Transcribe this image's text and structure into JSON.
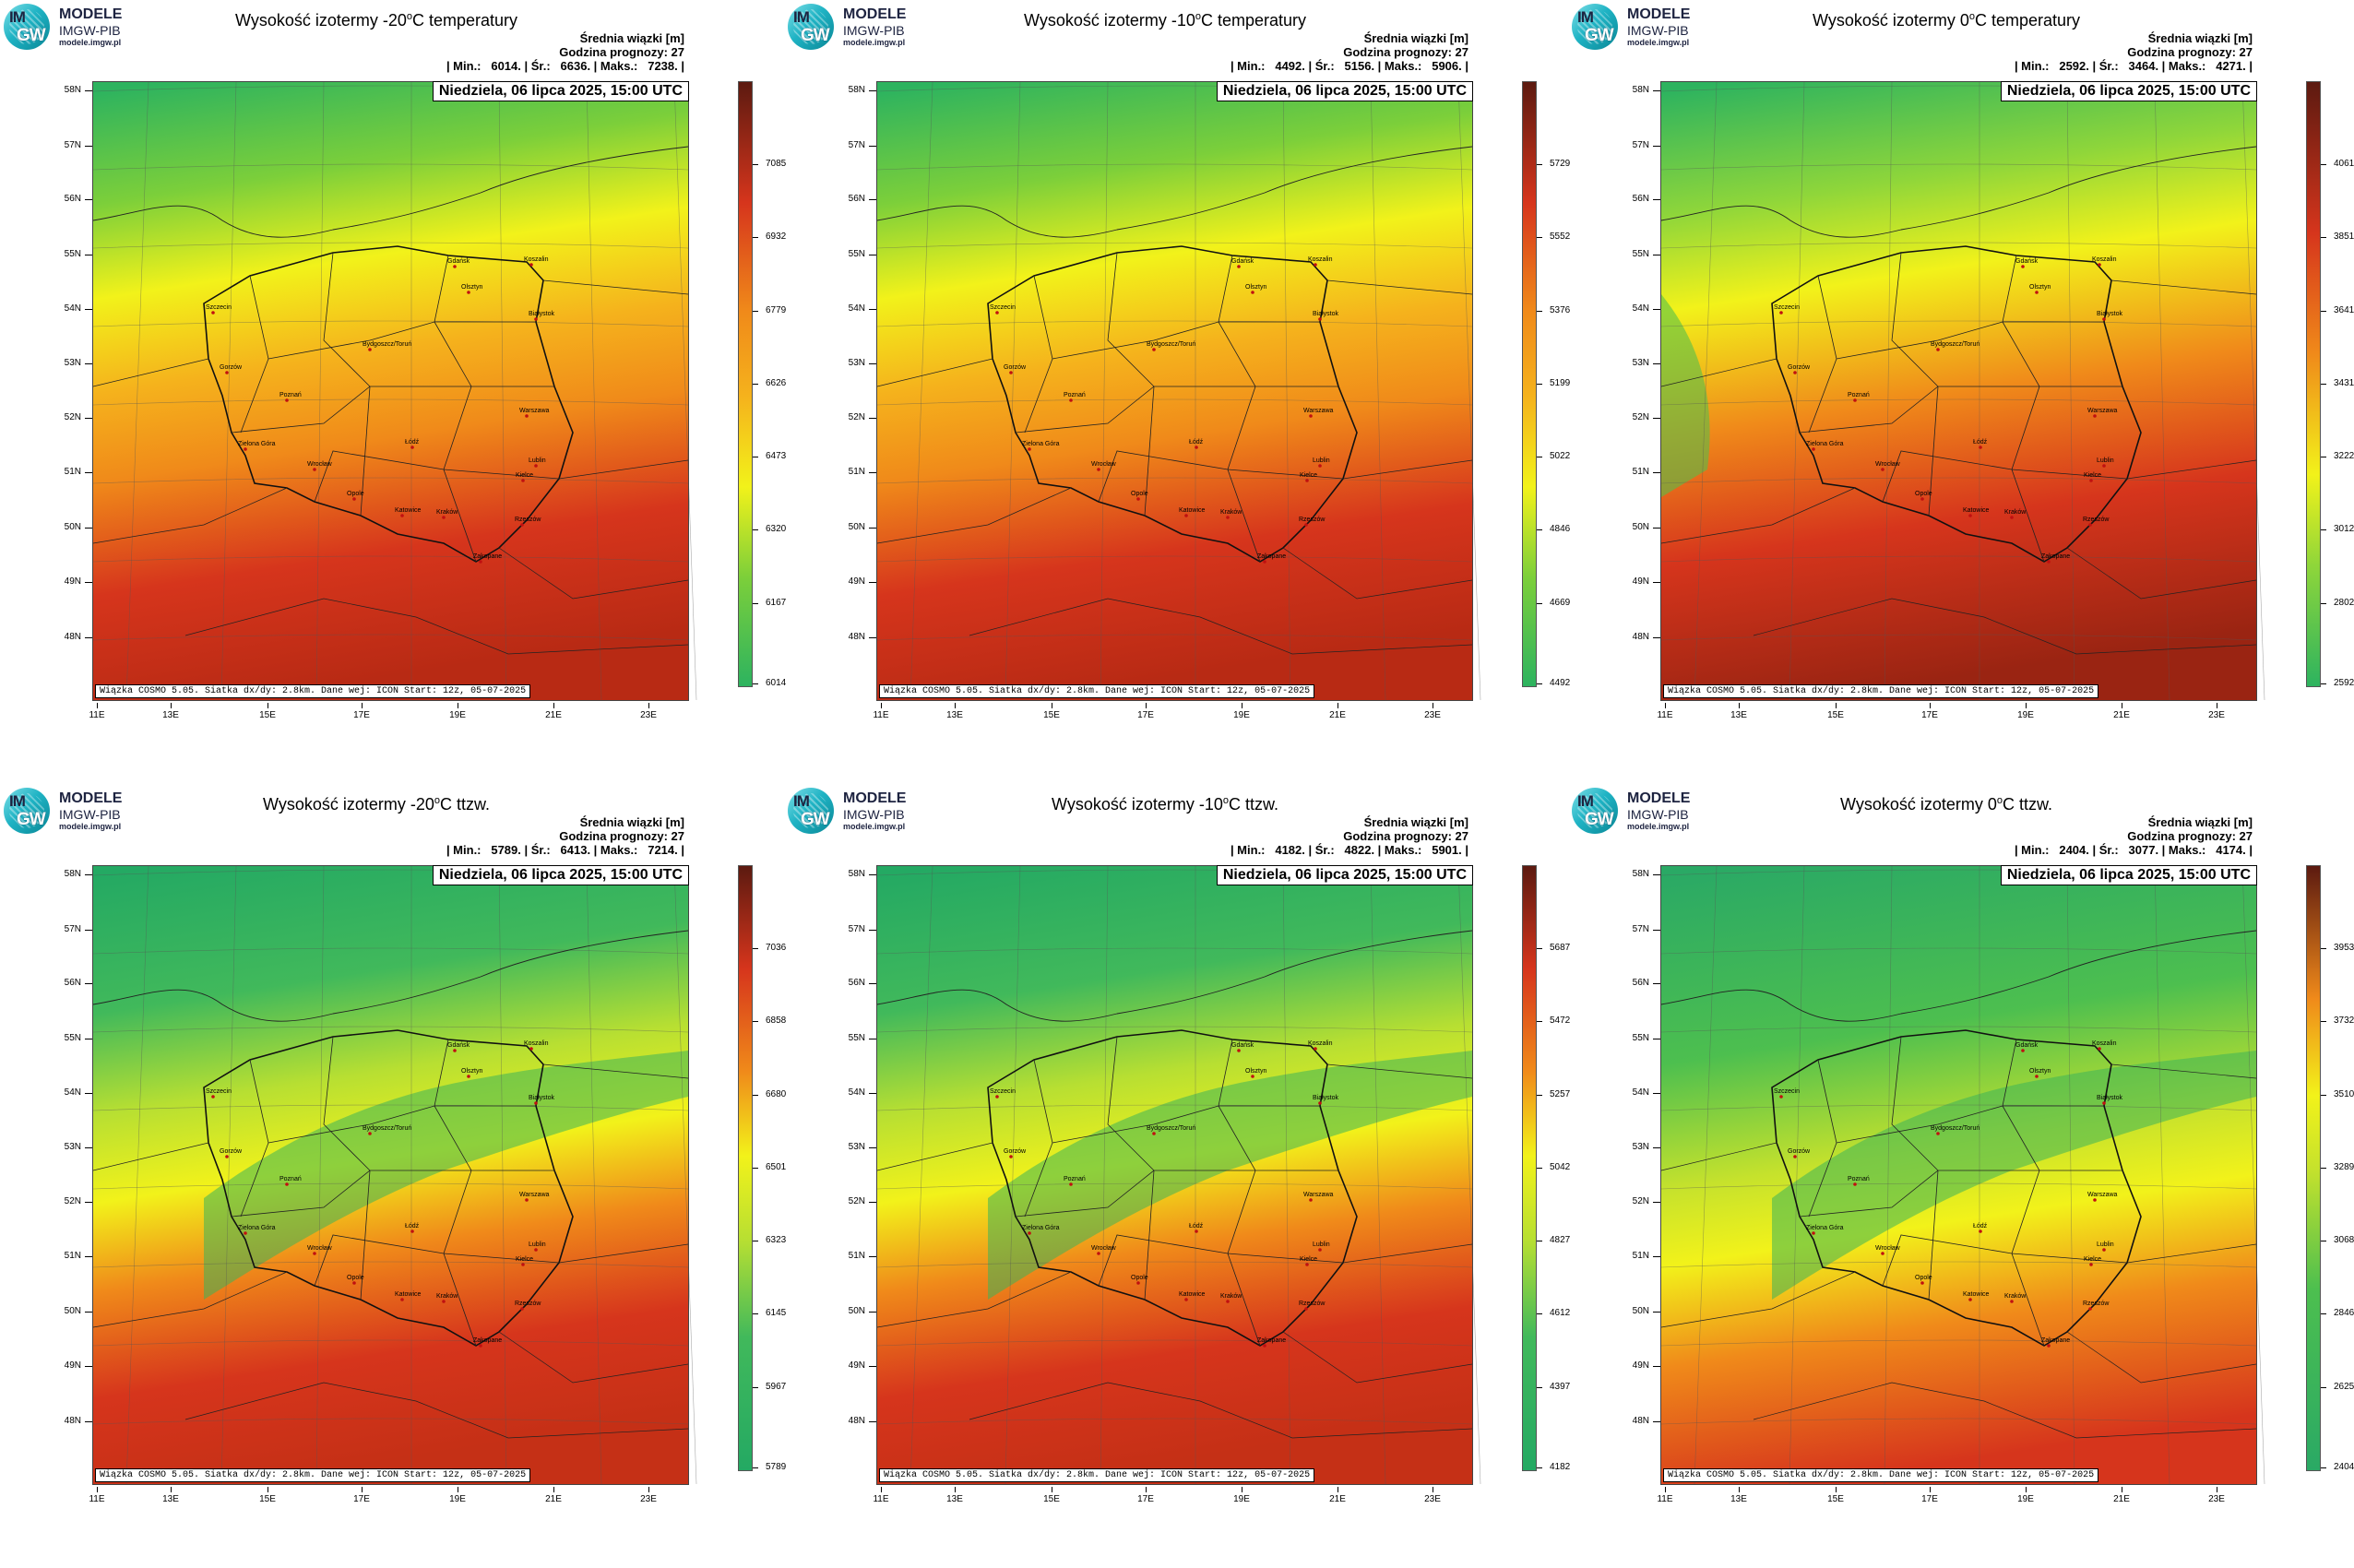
{
  "logo": {
    "im": "IM",
    "gw": "GW",
    "line1": "MODELE",
    "line2": "IMGW-PIB",
    "line3": "modele.imgw.pl"
  },
  "common": {
    "stats_title": "Średnia wiązki [m]",
    "forecast_hour": "Godzina prognozy: 27",
    "date": "Niedziela, 06 lipca 2025, 15:00 UTC",
    "info": "Wiązka COSMO 5.05. Siatka dx/dy: 2.8km. Dane wej: ICON Start: 12z, 05-07-2025",
    "lat_labels": [
      "58N",
      "57N",
      "56N",
      "55N",
      "54N",
      "53N",
      "52N",
      "51N",
      "50N",
      "49N",
      "48N"
    ],
    "lon_labels": [
      "11E",
      "13E",
      "15E",
      "17E",
      "19E",
      "21E",
      "23E"
    ],
    "cities": [
      "Gdańsk",
      "Olsztyn",
      "Koszalin",
      "Szczecin",
      "Białystok",
      "Bydgoszcz/Toruń",
      "Gorzów",
      "Poznań",
      "Warszawa",
      "Zielona Góra",
      "Łódź",
      "Lublin",
      "Wrocław",
      "Kielce",
      "Opole",
      "Katowice",
      "Kraków",
      "Rzeszów",
      "Zakopane"
    ]
  },
  "panels": [
    {
      "title_pre": "Wysokość izotermy -20",
      "title_sup": "o",
      "title_post": "C temperatury",
      "stats": "| Min.:   6014. | Śr.:   6636. | Maks.:   7238. |",
      "colorbar": [
        "7085",
        "6932",
        "6779",
        "6626",
        "6473",
        "6320",
        "6167",
        "6014"
      ],
      "pattern": "temp"
    },
    {
      "title_pre": "Wysokość izotermy -10",
      "title_sup": "o",
      "title_post": "C temperatury",
      "stats": "| Min.:   4492. | Śr.:   5156. | Maks.:   5906. |",
      "colorbar": [
        "5729",
        "5552",
        "5376",
        "5199",
        "5022",
        "4846",
        "4669",
        "4492"
      ],
      "pattern": "temp"
    },
    {
      "title_pre": "Wysokość izotermy 0",
      "title_sup": "o",
      "title_post": "C temperatury",
      "stats": "| Min.:   2592. | Śr.:   3464. | Maks.:   4271. |",
      "colorbar": [
        "4061",
        "3851",
        "3641",
        "3431",
        "3222",
        "3012",
        "2802",
        "2592"
      ],
      "pattern": "temp0"
    },
    {
      "title_pre": "Wysokość izotermy -20",
      "title_sup": "o",
      "title_post": "C ttzw.",
      "stats": "| Min.:   5789. | Śr.:   6413. | Maks.:   7214. |",
      "colorbar": [
        "7036",
        "6858",
        "6680",
        "6501",
        "6323",
        "6145",
        "5967",
        "5789"
      ],
      "pattern": "wet"
    },
    {
      "title_pre": "Wysokość izotermy -10",
      "title_sup": "o",
      "title_post": "C ttzw.",
      "stats": "| Min.:   4182. | Śr.:   4822. | Maks.:   5901. |",
      "colorbar": [
        "5687",
        "5472",
        "5257",
        "5042",
        "4827",
        "4612",
        "4397",
        "4182"
      ],
      "pattern": "wet"
    },
    {
      "title_pre": "Wysokość izotermy 0",
      "title_sup": "o",
      "title_post": "C ttzw.",
      "stats": "| Min.:   2404. | Śr.:   3077. | Maks.:   4174. |",
      "colorbar": [
        "3953",
        "3732",
        "3510",
        "3289",
        "3068",
        "2846",
        "2625",
        "2404"
      ],
      "pattern": "wet0"
    }
  ],
  "colors": {
    "cyan": "#3ce6dc",
    "green": "#2db35f",
    "yellow": "#f2f21a",
    "orange": "#f08a1a",
    "red": "#d6351c",
    "darkred": "#6b1a10"
  }
}
